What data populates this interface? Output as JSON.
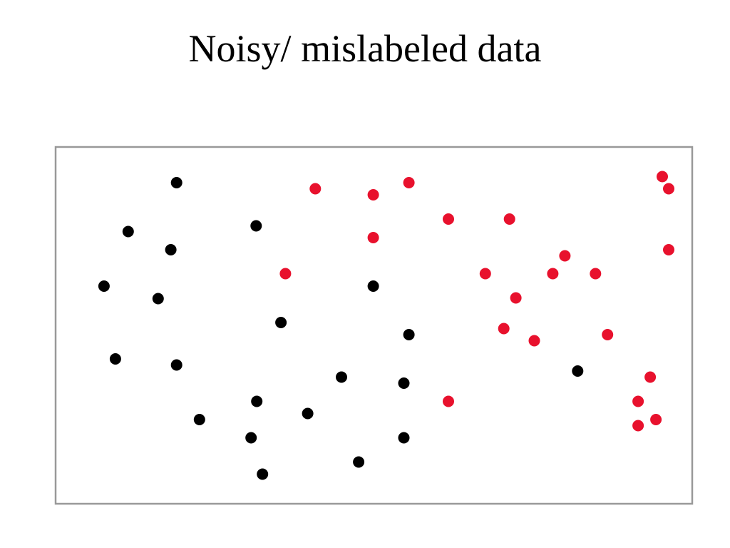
{
  "slide": {
    "title": "Noisy/ mislabeled data"
  },
  "colors": {
    "class_black": "#000000",
    "class_red": "#e8112d",
    "frame": "#999999"
  },
  "chart_data": {
    "type": "scatter",
    "title": "Noisy/ mislabeled data",
    "xlim": [
      0,
      100
    ],
    "ylim": [
      0,
      100
    ],
    "grid": false,
    "legend": "none",
    "series": [
      {
        "color": "#000000",
        "points": [
          [
            19.0,
            90.0
          ],
          [
            11.4,
            76.3
          ],
          [
            18.1,
            71.2
          ],
          [
            31.5,
            77.9
          ],
          [
            7.6,
            61.0
          ],
          [
            16.1,
            57.5
          ],
          [
            35.4,
            50.8
          ],
          [
            49.9,
            61.0
          ],
          [
            55.5,
            47.4
          ],
          [
            9.4,
            40.6
          ],
          [
            19.0,
            38.9
          ],
          [
            44.9,
            35.5
          ],
          [
            54.7,
            33.8
          ],
          [
            31.6,
            28.7
          ],
          [
            39.6,
            25.3
          ],
          [
            22.6,
            23.6
          ],
          [
            30.7,
            18.5
          ],
          [
            54.7,
            18.5
          ],
          [
            47.6,
            11.7
          ],
          [
            32.5,
            8.3
          ],
          [
            82.0,
            37.2
          ]
        ]
      },
      {
        "color": "#e8112d",
        "points": [
          [
            40.8,
            88.3
          ],
          [
            49.9,
            86.6
          ],
          [
            55.5,
            90.0
          ],
          [
            95.3,
            91.7
          ],
          [
            96.3,
            88.3
          ],
          [
            61.7,
            79.8
          ],
          [
            71.3,
            79.8
          ],
          [
            49.9,
            74.6
          ],
          [
            80.0,
            69.5
          ],
          [
            96.3,
            71.2
          ],
          [
            36.1,
            64.5
          ],
          [
            67.5,
            64.5
          ],
          [
            78.1,
            64.5
          ],
          [
            84.8,
            64.5
          ],
          [
            72.3,
            57.7
          ],
          [
            70.4,
            49.1
          ],
          [
            75.2,
            45.7
          ],
          [
            86.7,
            47.4
          ],
          [
            93.4,
            35.5
          ],
          [
            61.7,
            28.7
          ],
          [
            91.5,
            28.7
          ],
          [
            94.3,
            23.6
          ],
          [
            91.5,
            21.9
          ]
        ]
      }
    ]
  }
}
